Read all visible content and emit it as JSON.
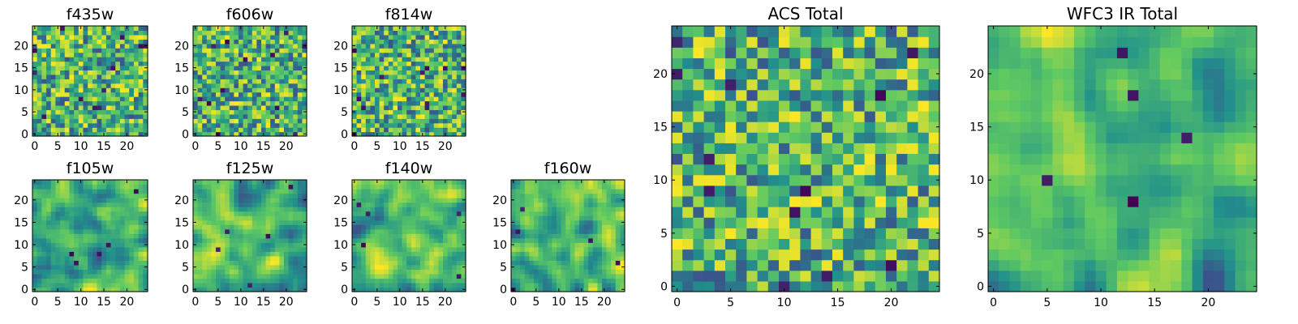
{
  "figure": {
    "colormap": "viridis",
    "colormap_stops": [
      "#440154",
      "#3b528b",
      "#21918c",
      "#5ec962",
      "#fde725"
    ]
  },
  "chart_data": [
    {
      "type": "heatmap",
      "title": "f435w",
      "xlim": [
        0,
        24
      ],
      "ylim": [
        0,
        24
      ],
      "xticks": [
        "0",
        "5",
        "10",
        "15",
        "20"
      ],
      "yticks": [
        "0",
        "5",
        "10",
        "15",
        "20"
      ],
      "grid": false,
      "texture": "noisy",
      "seed": 11
    },
    {
      "type": "heatmap",
      "title": "f606w",
      "xlim": [
        0,
        24
      ],
      "ylim": [
        0,
        24
      ],
      "xticks": [
        "0",
        "5",
        "10",
        "15",
        "20"
      ],
      "yticks": [
        "0",
        "5",
        "10",
        "15",
        "20"
      ],
      "grid": false,
      "texture": "noisy",
      "seed": 23
    },
    {
      "type": "heatmap",
      "title": "f814w",
      "xlim": [
        0,
        24
      ],
      "ylim": [
        0,
        24
      ],
      "xticks": [
        "0",
        "5",
        "10",
        "15",
        "20"
      ],
      "yticks": [
        "0",
        "5",
        "10",
        "15",
        "20"
      ],
      "grid": false,
      "texture": "noisy",
      "seed": 37
    },
    {
      "type": "heatmap",
      "title": "f105w",
      "xlim": [
        0,
        24
      ],
      "ylim": [
        0,
        24
      ],
      "xticks": [
        "0",
        "5",
        "10",
        "15",
        "20"
      ],
      "yticks": [
        "0",
        "5",
        "10",
        "15",
        "20"
      ],
      "grid": false,
      "texture": "smooth",
      "seed": 41
    },
    {
      "type": "heatmap",
      "title": "f125w",
      "xlim": [
        0,
        24
      ],
      "ylim": [
        0,
        24
      ],
      "xticks": [
        "0",
        "5",
        "10",
        "15",
        "20"
      ],
      "yticks": [
        "0",
        "5",
        "10",
        "15",
        "20"
      ],
      "grid": false,
      "texture": "smooth",
      "seed": 53
    },
    {
      "type": "heatmap",
      "title": "f140w",
      "xlim": [
        0,
        24
      ],
      "ylim": [
        0,
        24
      ],
      "xticks": [
        "0",
        "5",
        "10",
        "15",
        "20"
      ],
      "yticks": [
        "0",
        "5",
        "10",
        "15",
        "20"
      ],
      "grid": false,
      "texture": "smooth",
      "seed": 67
    },
    {
      "type": "heatmap",
      "title": "f160w",
      "xlim": [
        0,
        24
      ],
      "ylim": [
        0,
        24
      ],
      "xticks": [
        "0",
        "5",
        "10",
        "15",
        "20"
      ],
      "yticks": [
        "0",
        "5",
        "10",
        "15",
        "20"
      ],
      "grid": false,
      "texture": "smooth",
      "seed": 79
    },
    {
      "type": "heatmap",
      "title": "ACS Total",
      "xlim": [
        0,
        24
      ],
      "ylim": [
        0,
        24
      ],
      "xticks": [
        "0",
        "5",
        "10",
        "15",
        "20"
      ],
      "yticks": [
        "0",
        "5",
        "10",
        "15",
        "20"
      ],
      "grid": false,
      "texture": "noisy",
      "seed": 97
    },
    {
      "type": "heatmap",
      "title": "WFC3 IR Total",
      "xlim": [
        0,
        24
      ],
      "ylim": [
        0,
        24
      ],
      "xticks": [
        "0",
        "5",
        "10",
        "15",
        "20"
      ],
      "yticks": [
        "0",
        "5",
        "10",
        "15",
        "20"
      ],
      "grid": false,
      "texture": "smooth",
      "seed": 131
    }
  ]
}
